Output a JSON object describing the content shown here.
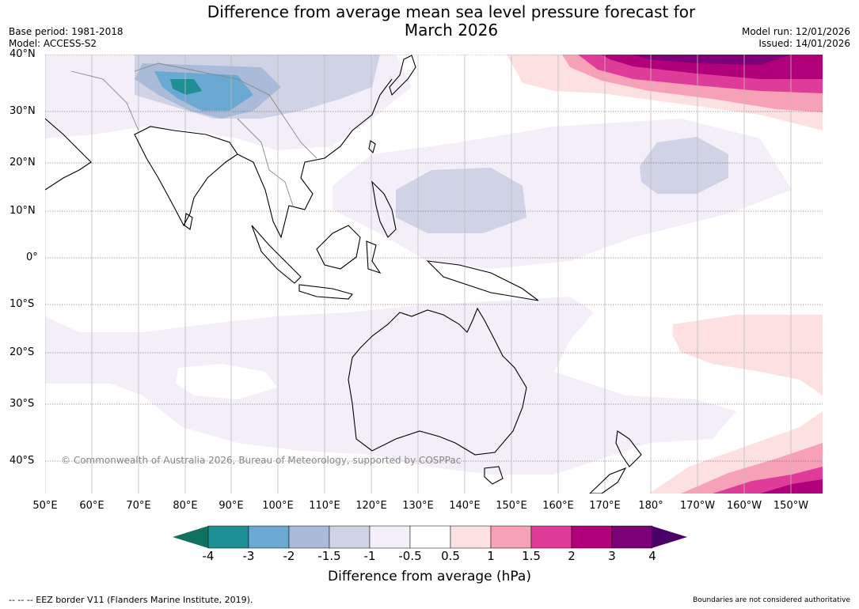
{
  "title": {
    "line1": "Difference from average mean sea level pressure forecast for",
    "line2": "March 2026"
  },
  "meta": {
    "base_period": "Base period: 1981-2018",
    "model": "Model: ACCESS-S2",
    "model_run": "Model run: 12/01/2026",
    "issued": "Issued: 14/01/2026"
  },
  "map": {
    "latitude_labels": [
      "40°N",
      "30°N",
      "20°N",
      "10°N",
      "0°",
      "10°S",
      "20°S",
      "30°S",
      "40°S"
    ],
    "longitude_labels": [
      "50°E",
      "60°E",
      "70°E",
      "80°E",
      "90°E",
      "100°E",
      "110°E",
      "120°E",
      "130°E",
      "140°E",
      "150°E",
      "160°E",
      "170°E",
      "180°",
      "170°W",
      "160°W",
      "150°W"
    ],
    "copyright": "© Commonwealth of Australia 2026, Bureau of Meteorology, supported by COSPPac"
  },
  "colorbar": {
    "ticks": [
      "-4",
      "-3",
      "-2",
      "-1.5",
      "-1",
      "-0.5",
      "0.5",
      "1",
      "1.5",
      "2",
      "3",
      "4"
    ],
    "colors": [
      "#127060",
      "#1e8f94",
      "#6aa9d1",
      "#a9bbd8",
      "#d0d2e5",
      "#f3eef7",
      "#ffffff",
      "#fde0e0",
      "#f7a1b9",
      "#df3c9a",
      "#b0007a",
      "#7c0076",
      "#4b0068"
    ],
    "label": "Difference from average (hPa)"
  },
  "footer": {
    "eez": "--  --  -- EEZ border V11 (Flanders Marine Institute, 2019).",
    "disclaimer": "Boundaries are not considered authoritative"
  }
}
